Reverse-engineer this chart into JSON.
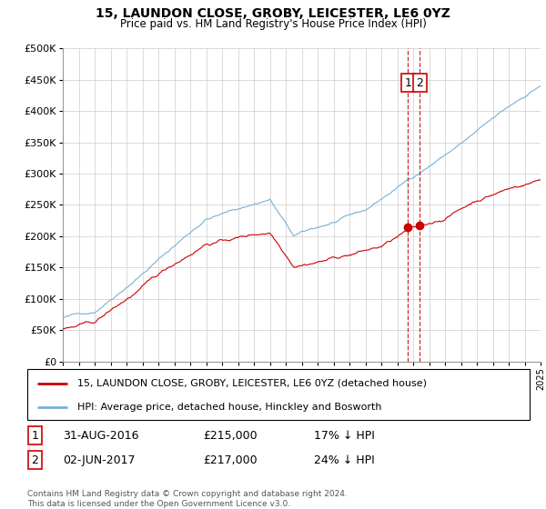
{
  "title": "15, LAUNDON CLOSE, GROBY, LEICESTER, LE6 0YZ",
  "subtitle": "Price paid vs. HM Land Registry's House Price Index (HPI)",
  "legend_line1": "15, LAUNDON CLOSE, GROBY, LEICESTER, LE6 0YZ (detached house)",
  "legend_line2": "HPI: Average price, detached house, Hinckley and Bosworth",
  "footnote": "Contains HM Land Registry data © Crown copyright and database right 2024.\nThis data is licensed under the Open Government Licence v3.0.",
  "transaction1_date": "31-AUG-2016",
  "transaction1_price": "£215,000",
  "transaction1_hpi": "17% ↓ HPI",
  "transaction2_date": "02-JUN-2017",
  "transaction2_price": "£217,000",
  "transaction2_hpi": "24% ↓ HPI",
  "hpi_color": "#7bafd4",
  "price_color": "#cc0000",
  "vline_color": "#cc0000",
  "grid_color": "#cccccc",
  "ylim": [
    0,
    500000
  ],
  "yticks": [
    0,
    50000,
    100000,
    150000,
    200000,
    250000,
    300000,
    350000,
    400000,
    450000,
    500000
  ],
  "vline_x1": 2016.67,
  "vline_x2": 2017.42
}
